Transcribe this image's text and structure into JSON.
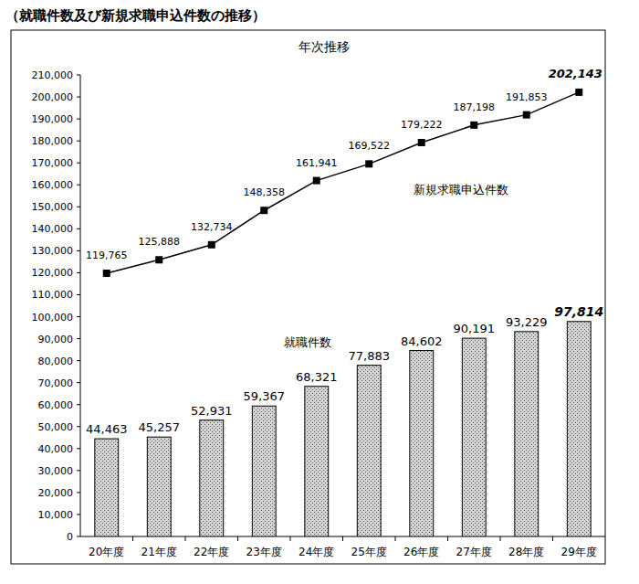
{
  "chart_data": {
    "type": "bar",
    "title": "（就職件数及び新規求職申込件数の推移）",
    "subtitle": "年次推移",
    "categories": [
      "20年度",
      "21年度",
      "22年度",
      "23年度",
      "24年度",
      "25年度",
      "26年度",
      "27年度",
      "28年度",
      "29年度"
    ],
    "series": [
      {
        "name": "就職件数",
        "type": "bar",
        "color": "#d4d4d4",
        "values": [
          44463,
          45257,
          52931,
          59367,
          68321,
          77883,
          84602,
          90191,
          93229,
          97814
        ],
        "value_labels": [
          "44,463",
          "45,257",
          "52,931",
          "59,367",
          "68,321",
          "77,883",
          "84,602",
          "90,191",
          "93,229",
          "97,814"
        ]
      },
      {
        "name": "新規求職申込件数",
        "type": "line",
        "color": "#000000",
        "marker": "square",
        "values": [
          119765,
          125888,
          132734,
          148358,
          161941,
          169522,
          179222,
          187198,
          191853,
          202143
        ],
        "value_labels": [
          "119,765",
          "125,888",
          "132,734",
          "148,358",
          "161,941",
          "169,522",
          "179,222",
          "187,198",
          "191,853",
          "202,143"
        ]
      }
    ],
    "ylim": [
      0,
      210000
    ],
    "yticks": [
      0,
      {
        "value": 10000,
        "label": "10,000"
      },
      {
        "value": 20000,
        "label": "20,000"
      },
      {
        "value": 30000,
        "label": "30,000"
      },
      {
        "value": 40000,
        "label": "40,000"
      },
      {
        "value": 50000,
        "label": "50,000"
      },
      {
        "value": 60000,
        "label": "60,000"
      },
      {
        "value": 70000,
        "label": "70,000"
      },
      {
        "value": 80000,
        "label": "80,000"
      },
      {
        "value": 90000,
        "label": "90,000"
      },
      {
        "value": 100000,
        "label": "100,000"
      },
      {
        "value": 110000,
        "label": "110,000"
      },
      {
        "value": 120000,
        "label": "120,000"
      },
      {
        "value": 130000,
        "label": "130,000"
      },
      {
        "value": 140000,
        "label": "140,000"
      },
      {
        "value": 150000,
        "label": "150,000"
      },
      {
        "value": 160000,
        "label": "160,000"
      },
      {
        "value": 170000,
        "label": "170,000"
      },
      {
        "value": 180000,
        "label": "180,000"
      },
      {
        "value": 190000,
        "label": "190,000"
      },
      {
        "value": 200000,
        "label": "200,000"
      },
      {
        "value": 210000,
        "label": "210,000"
      }
    ],
    "grid": false,
    "data_labels": true
  }
}
